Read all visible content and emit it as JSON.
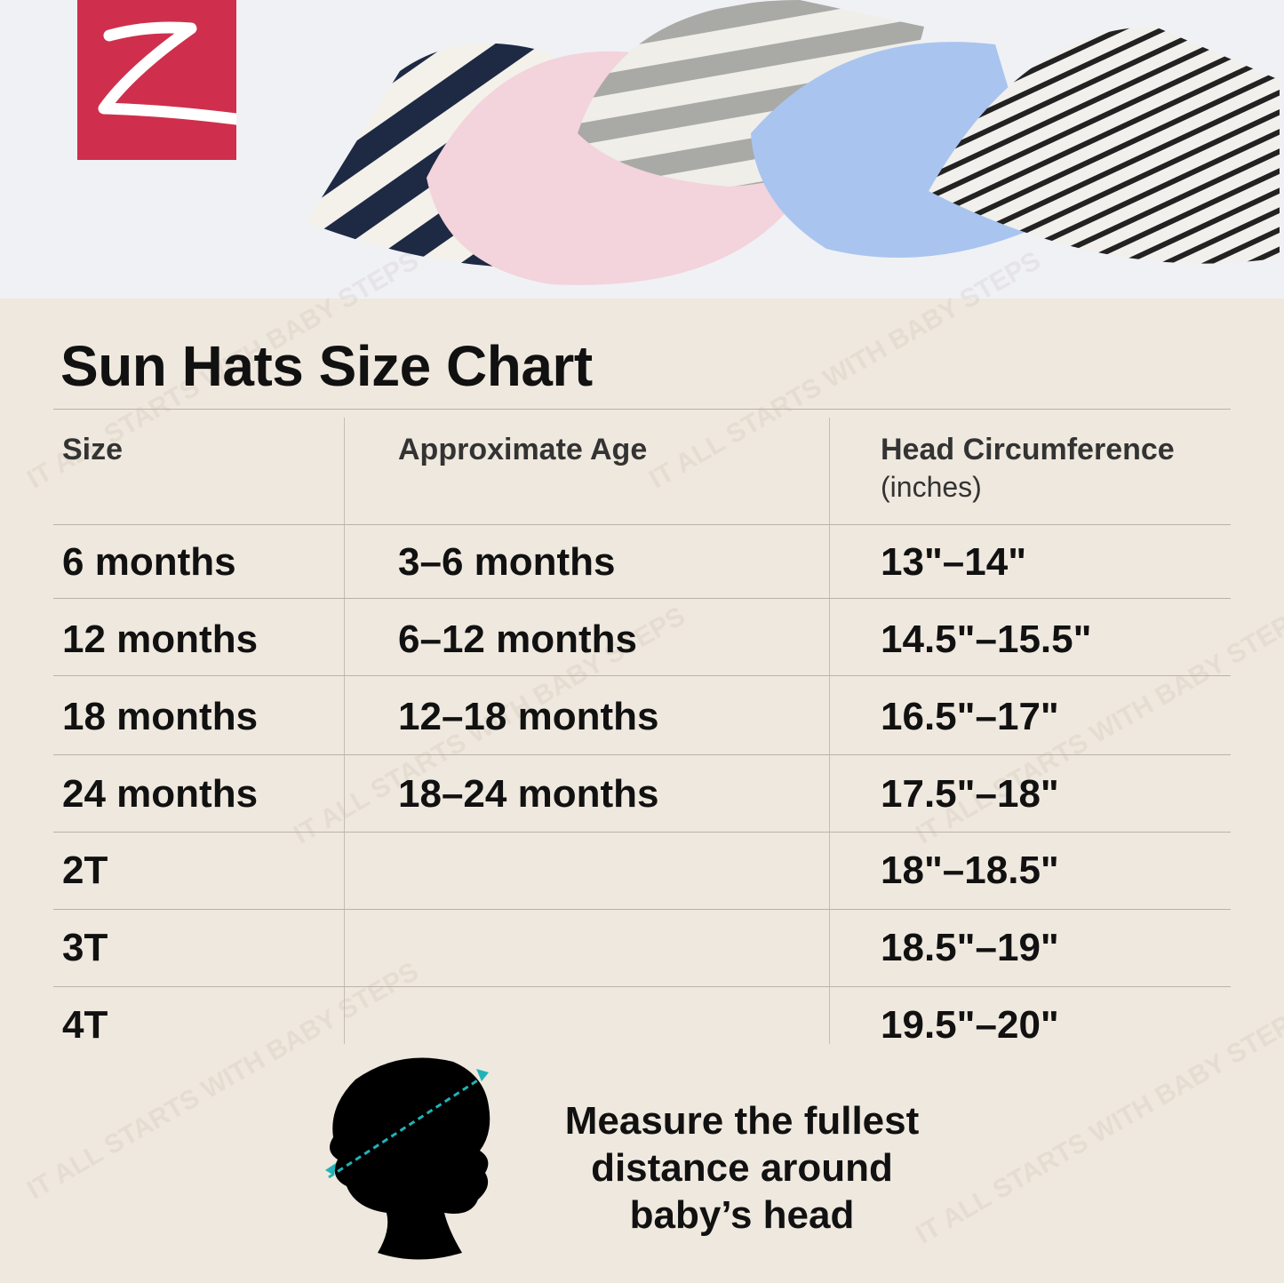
{
  "brand": {
    "logo_letter": "Z",
    "color": "#cf2f4d"
  },
  "watermark": "IT ALL STARTS WITH BABY STEPS",
  "title": "Sun Hats Size Chart",
  "table": {
    "headers": [
      {
        "label": "Size",
        "sub": ""
      },
      {
        "label": "Approximate Age",
        "sub": ""
      },
      {
        "label": "Head Circumference",
        "sub": "(inches)"
      }
    ],
    "rows": [
      [
        "6 months",
        "3–6 months",
        "13\"–14\""
      ],
      [
        "12 months",
        "6–12 months",
        "14.5\"–15.5\""
      ],
      [
        "18 months",
        "12–18 months",
        "16.5\"–17\""
      ],
      [
        "24 months",
        "18–24 months",
        "17.5\"–18\""
      ],
      [
        "2T",
        "",
        "18\"–18.5\""
      ],
      [
        "3T",
        "",
        "18.5\"–19\""
      ],
      [
        "4T",
        "",
        "19.5\"–20\""
      ]
    ]
  },
  "measure_note": [
    "Measure the fullest",
    "distance around",
    "baby’s head"
  ],
  "accent_color": "#1fb3b8"
}
